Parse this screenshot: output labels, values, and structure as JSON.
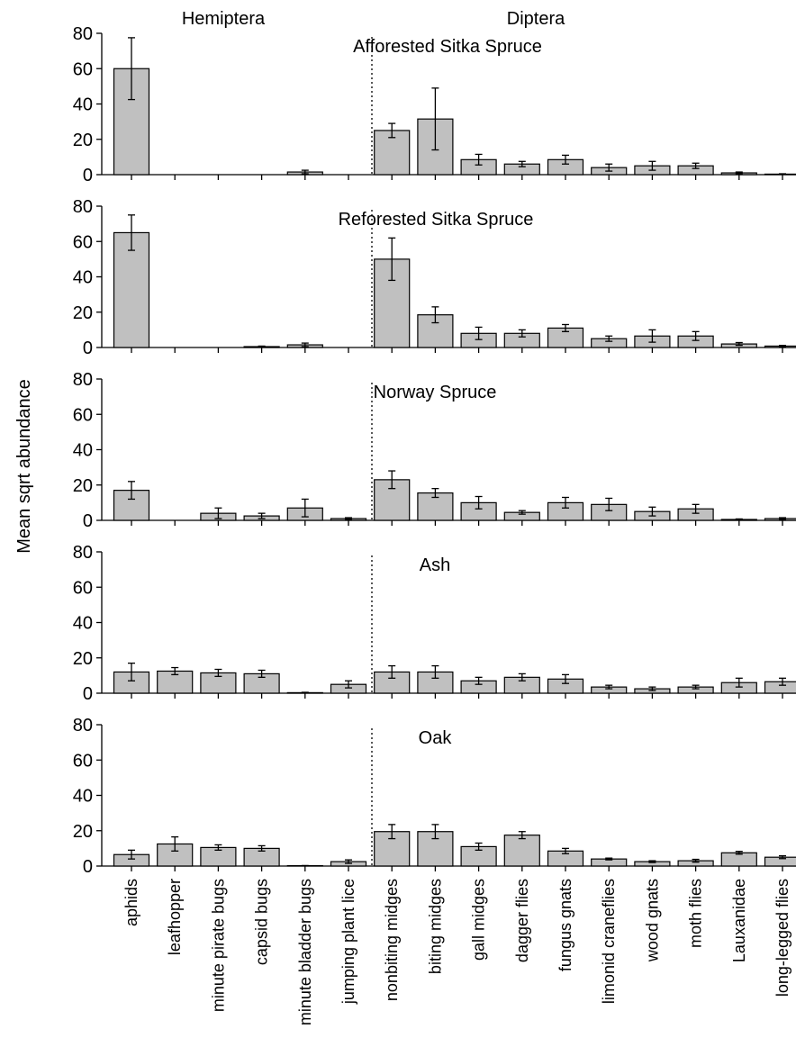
{
  "chart_data": {
    "type": "bar",
    "ylabel": "Mean sqrt abundance",
    "ylim": [
      0,
      80
    ],
    "yticks": [
      0,
      20,
      40,
      60,
      80
    ],
    "group_labels": [
      "Hemiptera",
      "Diptera"
    ],
    "group_split_after": "jumping plant lice",
    "categories": [
      "aphids",
      "leafhopper",
      "minute pirate bugs",
      "capsid bugs",
      "minute bladder bugs",
      "jumping plant lice",
      "nonbiting midges",
      "biting midges",
      "gall midges",
      "dagger flies",
      "fungus gnats",
      "limonid craneflies",
      "wood gnats",
      "moth flies",
      "Lauxanidae",
      "long-legged flies"
    ],
    "bar_color": "#c0c0c0",
    "error_bars": true,
    "panels": [
      {
        "title": "Afforested Sitka Spruce",
        "values": [
          60,
          0,
          0,
          0,
          1.5,
          0,
          25,
          31.5,
          8.5,
          6,
          8.5,
          4,
          5,
          5,
          1,
          0.3
        ],
        "errors": [
          17.5,
          0,
          0,
          0,
          1,
          0,
          4,
          17.5,
          3,
          1.5,
          2.5,
          2,
          2.5,
          1.5,
          0.5,
          0.2
        ]
      },
      {
        "title": "Reforested Sitka Spruce",
        "values": [
          65,
          0,
          0,
          0.5,
          1.5,
          0,
          50,
          18.5,
          8,
          8,
          11,
          5,
          6.5,
          6.5,
          2,
          0.8
        ],
        "errors": [
          10,
          0,
          0,
          0.3,
          1,
          0,
          12,
          4.5,
          3.5,
          2,
          2,
          1.5,
          3.5,
          2.5,
          0.8,
          0.4
        ]
      },
      {
        "title": "Norway Spruce",
        "values": [
          17,
          0,
          4,
          2.5,
          7,
          1,
          23,
          15.5,
          10,
          4.5,
          10,
          9,
          5,
          6.5,
          0.5,
          1
        ],
        "errors": [
          5,
          0,
          3,
          1.5,
          5,
          0.5,
          5,
          2.5,
          3.5,
          1,
          3,
          3.5,
          2.5,
          2.5,
          0.3,
          0.5
        ]
      },
      {
        "title": "Ash",
        "values": [
          12,
          12.5,
          11.5,
          11,
          0.3,
          5,
          12,
          12,
          7,
          9,
          8,
          3.5,
          2.5,
          3.5,
          6,
          6.5
        ],
        "errors": [
          5,
          2,
          2,
          2,
          0.2,
          2,
          3.5,
          3.5,
          2,
          2,
          2.5,
          1,
          1,
          1,
          2.5,
          2
        ]
      },
      {
        "title": "Oak",
        "values": [
          6.5,
          12.5,
          10.5,
          10,
          0.2,
          2.5,
          19.5,
          19.5,
          11,
          17.5,
          8.5,
          4,
          2.5,
          3,
          7.5,
          5
        ],
        "errors": [
          2.5,
          4,
          1.5,
          1.5,
          0.1,
          1,
          4,
          4,
          2,
          2,
          1.5,
          0.5,
          0.5,
          0.8,
          0.8,
          0.8
        ]
      }
    ]
  }
}
